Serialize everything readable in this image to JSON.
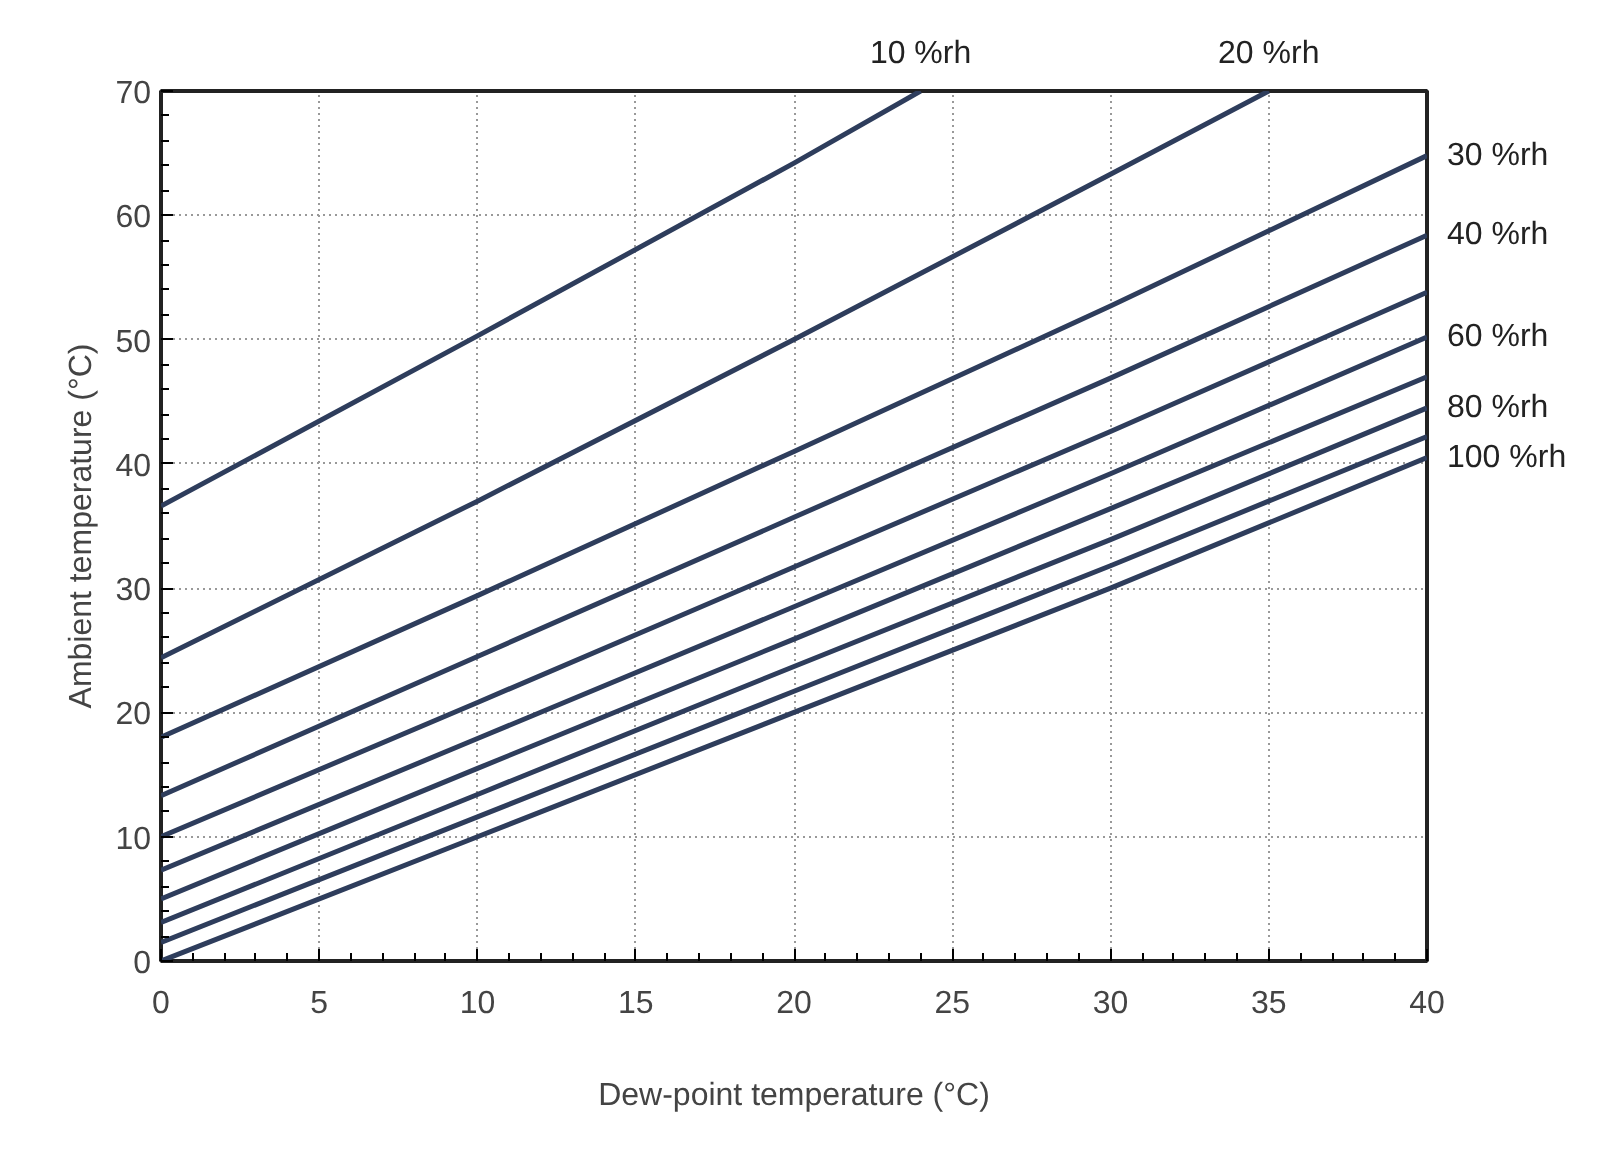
{
  "chart_data": {
    "type": "line",
    "xlabel": "Dew-point temperature (°C)",
    "ylabel": "Ambient temperature (°C)",
    "xlim": [
      0,
      40
    ],
    "ylim": [
      0,
      70
    ],
    "xticks": [
      0,
      5,
      10,
      15,
      20,
      25,
      30,
      35,
      40
    ],
    "yticks": [
      0,
      10,
      20,
      30,
      40,
      50,
      60,
      70
    ],
    "grid": true,
    "marker": "none",
    "line_style": "solid",
    "series": [
      {
        "name": "10 %rh",
        "color": "#2e3d5c",
        "x": [
          0,
          10,
          20,
          24
        ],
        "values": [
          36.6,
          50.3,
          64.2,
          70
        ]
      },
      {
        "name": "20 %rh",
        "color": "#2e3d5c",
        "x": [
          0,
          10,
          20,
          30,
          35
        ],
        "values": [
          24.4,
          37,
          50,
          63.3,
          70
        ]
      },
      {
        "name": "30 %rh",
        "color": "#2e3d5c",
        "x": [
          0,
          10,
          20,
          30,
          40
        ],
        "values": [
          18,
          29.4,
          41,
          52.7,
          64.8
        ]
      },
      {
        "name": "40 %rh",
        "color": "#2e3d5c",
        "x": [
          0,
          10,
          20,
          30,
          40
        ],
        "values": [
          13.3,
          24.5,
          35.7,
          46.9,
          58.4
        ]
      },
      {
        "color": "#2e3d5c",
        "x": [
          0,
          10,
          20,
          30,
          40
        ],
        "values": [
          10,
          20.8,
          31.7,
          42.6,
          53.8
        ]
      },
      {
        "name": "60 %rh",
        "color": "#2e3d5c",
        "x": [
          0,
          10,
          20,
          30,
          40
        ],
        "values": [
          7.3,
          17.9,
          28.5,
          39.2,
          50.2
        ]
      },
      {
        "color": "#2e3d5c",
        "x": [
          0,
          10,
          20,
          30,
          40
        ],
        "values": [
          5,
          15.5,
          25.9,
          36.4,
          47
        ]
      },
      {
        "name": "80 %rh",
        "color": "#2e3d5c",
        "x": [
          0,
          10,
          20,
          30,
          40
        ],
        "values": [
          3.1,
          13.4,
          23.7,
          33.9,
          44.5
        ]
      },
      {
        "color": "#2e3d5c",
        "x": [
          0,
          10,
          20,
          30,
          40
        ],
        "values": [
          1.5,
          11.6,
          21.7,
          31.8,
          42.2
        ]
      },
      {
        "name": "100 %rh",
        "color": "#2e3d5c",
        "x": [
          0,
          10,
          20,
          30,
          40
        ],
        "values": [
          0,
          10,
          20,
          30,
          40.5
        ]
      }
    ]
  }
}
